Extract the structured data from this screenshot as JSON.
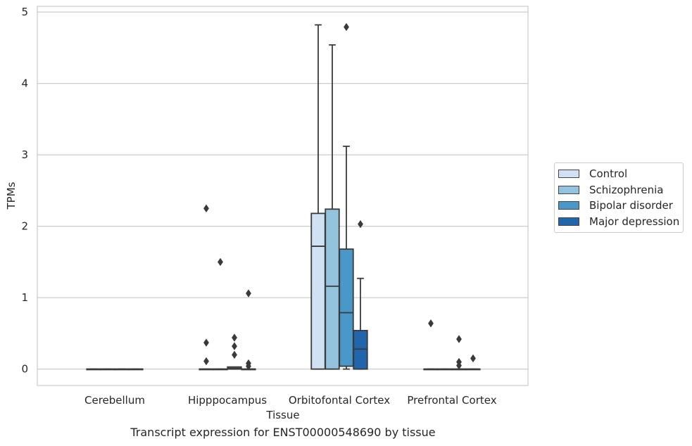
{
  "caption": "Transcript expression for ENST00000548690 by tissue",
  "chart_data": {
    "type": "box",
    "xlabel": "Tissue",
    "ylabel": "TPMs",
    "ylim": [
      -0.23,
      5.08
    ],
    "yticks": [
      0,
      1,
      2,
      3,
      4,
      5
    ],
    "grid": true,
    "legend_position": "right",
    "categories": [
      "Cerebellum",
      "Hipppocampus",
      "Orbitofontal Cortex",
      "Prefrontal Cortex"
    ],
    "series": [
      {
        "name": "Control",
        "color": "#cfe1f2",
        "boxes": [
          {
            "category": "Cerebellum",
            "whisker_low": 0,
            "q1": 0,
            "median": 0,
            "q3": 0,
            "whisker_high": 0,
            "outliers": []
          },
          {
            "category": "Hipppocampus",
            "whisker_low": 0,
            "q1": 0,
            "median": 0,
            "q3": 0,
            "whisker_high": 0,
            "outliers": [
              2.25,
              0.37,
              0.11
            ]
          },
          {
            "category": "Orbitofontal Cortex",
            "whisker_low": 0,
            "q1": 0,
            "median": 1.72,
            "q3": 2.18,
            "whisker_high": 4.82,
            "outliers": []
          },
          {
            "category": "Prefrontal Cortex",
            "whisker_low": 0,
            "q1": 0,
            "median": 0,
            "q3": 0,
            "whisker_high": 0,
            "outliers": [
              0.64
            ]
          }
        ]
      },
      {
        "name": "Schizophrenia",
        "color": "#93c3df",
        "boxes": [
          {
            "category": "Cerebellum",
            "whisker_low": 0,
            "q1": 0,
            "median": 0,
            "q3": 0,
            "whisker_high": 0,
            "outliers": []
          },
          {
            "category": "Hipppocampus",
            "whisker_low": 0,
            "q1": 0,
            "median": 0,
            "q3": 0,
            "whisker_high": 0,
            "outliers": [
              1.5
            ]
          },
          {
            "category": "Orbitofontal Cortex",
            "whisker_low": 0,
            "q1": 0,
            "median": 1.16,
            "q3": 2.24,
            "whisker_high": 4.54,
            "outliers": []
          },
          {
            "category": "Prefrontal Cortex",
            "whisker_low": 0,
            "q1": 0,
            "median": 0,
            "q3": 0,
            "whisker_high": 0,
            "outliers": []
          }
        ]
      },
      {
        "name": "Bipolar disorder",
        "color": "#4a98c9",
        "boxes": [
          {
            "category": "Cerebellum",
            "whisker_low": 0,
            "q1": 0,
            "median": 0,
            "q3": 0,
            "whisker_high": 0,
            "outliers": []
          },
          {
            "category": "Hipppocampus",
            "whisker_low": 0,
            "q1": 0,
            "median": 0.01,
            "q3": 0.03,
            "whisker_high": 0.03,
            "outliers": [
              0.44,
              0.32,
              0.2
            ]
          },
          {
            "category": "Orbitofontal Cortex",
            "whisker_low": 0,
            "q1": 0.04,
            "median": 0.79,
            "q3": 1.68,
            "whisker_high": 3.12,
            "outliers": [
              4.79
            ]
          },
          {
            "category": "Prefrontal Cortex",
            "whisker_low": 0,
            "q1": 0,
            "median": 0,
            "q3": 0,
            "whisker_high": 0,
            "outliers": [
              0.42,
              0.1,
              0.05
            ]
          }
        ]
      },
      {
        "name": "Major depression",
        "color": "#2166ac",
        "boxes": [
          {
            "category": "Cerebellum",
            "whisker_low": 0,
            "q1": 0,
            "median": 0,
            "q3": 0,
            "whisker_high": 0,
            "outliers": []
          },
          {
            "category": "Hipppocampus",
            "whisker_low": 0,
            "q1": 0,
            "median": 0,
            "q3": 0,
            "whisker_high": 0,
            "outliers": [
              1.06,
              0.08,
              0.04
            ]
          },
          {
            "category": "Orbitofontal Cortex",
            "whisker_low": 0,
            "q1": 0,
            "median": 0.28,
            "q3": 0.54,
            "whisker_high": 1.27,
            "outliers": [
              2.03
            ]
          },
          {
            "category": "Prefrontal Cortex",
            "whisker_low": 0,
            "q1": 0,
            "median": 0,
            "q3": 0,
            "whisker_high": 0,
            "outliers": [
              0.15
            ]
          }
        ]
      }
    ]
  }
}
